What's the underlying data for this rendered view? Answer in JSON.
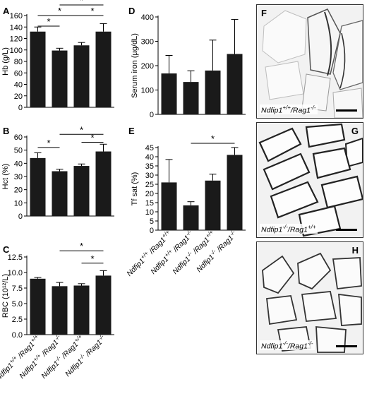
{
  "chart_data": [
    {
      "panel": "A",
      "type": "bar",
      "categories": [
        "+/+|+/+",
        "+/+|-/-",
        "-/-|+/+",
        "-/-|-/-"
      ],
      "values": [
        132,
        99,
        108,
        132
      ],
      "errors": [
        8,
        4,
        5,
        14
      ],
      "ylabel": "Hb (g/L)",
      "ylim": [
        0,
        160
      ],
      "yticks": [
        0,
        20,
        40,
        60,
        80,
        100,
        120,
        140,
        160
      ],
      "significance": [
        [
          0,
          1
        ],
        [
          0,
          2
        ],
        [
          2,
          3
        ],
        [
          1,
          3
        ]
      ],
      "show_categories": false
    },
    {
      "panel": "B",
      "type": "bar",
      "categories": [
        "+/+|+/+",
        "+/+|-/-",
        "-/-|+/+",
        "-/-|-/-"
      ],
      "values": [
        44,
        34,
        38,
        49
      ],
      "errors": [
        4,
        1.5,
        1.5,
        5.5
      ],
      "ylabel": "Hct (%)",
      "ylim": [
        0,
        60
      ],
      "yticks": [
        0,
        10,
        20,
        30,
        40,
        50,
        60
      ],
      "significance": [
        [
          0,
          1
        ],
        [
          2,
          3
        ],
        [
          1,
          3
        ]
      ],
      "show_categories": false
    },
    {
      "panel": "C",
      "type": "bar",
      "categories": [
        "+/+|+/+",
        "+/+|-/-",
        "-/-|+/+",
        "-/-|-/-"
      ],
      "values": [
        9.0,
        7.8,
        7.9,
        9.5
      ],
      "errors": [
        0.2,
        0.6,
        0.3,
        0.8
      ],
      "ylabel": "RBC (10¹²/L)",
      "ylim": [
        0,
        12.5
      ],
      "yticks": [
        0,
        2.5,
        5.0,
        7.5,
        10.0,
        12.5
      ],
      "significance": [
        [
          2,
          3
        ],
        [
          1,
          3
        ]
      ],
      "show_categories": true
    },
    {
      "panel": "D",
      "type": "bar",
      "categories": [
        "+/+|+/+",
        "+/+|-/-",
        "-/-|+/+",
        "-/-|-/-"
      ],
      "values": [
        168,
        133,
        180,
        248
      ],
      "errors": [
        74,
        46,
        125,
        142
      ],
      "ylabel": "Serum iron (µg/dL)",
      "ylim": [
        0,
        400
      ],
      "yticks": [
        0,
        100,
        200,
        300,
        400
      ],
      "significance": [],
      "show_categories": false
    },
    {
      "panel": "E",
      "type": "bar",
      "categories": [
        "+/+|+/+",
        "+/+|-/-",
        "-/-|+/+",
        "-/-|-/-"
      ],
      "values": [
        26,
        13.5,
        27,
        41
      ],
      "errors": [
        12.5,
        2,
        3.5,
        4
      ],
      "ylabel": "Tf sat (%)",
      "ylim": [
        0,
        45
      ],
      "yticks": [
        0,
        5,
        10,
        15,
        20,
        25,
        30,
        35,
        40,
        45
      ],
      "significance": [
        [
          1,
          3
        ]
      ],
      "show_categories": true
    }
  ],
  "category_labels": {
    "gene1": "Ndfip1",
    "gene2": "Rag1",
    "separator": " /"
  },
  "star": "*",
  "colors": {
    "bar": "#1a1a1a",
    "axis": "#000000",
    "tissue_edge": "#2b2b2b",
    "tissue_bg": "#f2f2f2"
  },
  "micrographs": [
    {
      "panel": "F",
      "label_gene1": "Ndfip1",
      "sup1": "+/+",
      "label_gene2": "/Rag1",
      "sup2": "-/-"
    },
    {
      "panel": "G",
      "label_gene1": "Ndfip1",
      "sup1": "-/-",
      "label_gene2": "/Rag1",
      "sup2": "+/+"
    },
    {
      "panel": "H",
      "label_gene1": "Ndfip1",
      "sup1": "-/-",
      "label_gene2": "/Rag1",
      "sup2": "-/-"
    }
  ]
}
